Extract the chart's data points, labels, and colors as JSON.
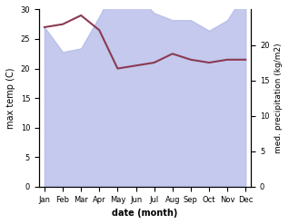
{
  "months": [
    "Jan",
    "Feb",
    "Mar",
    "Apr",
    "May",
    "Jun",
    "Jul",
    "Aug",
    "Sep",
    "Oct",
    "Nov",
    "Dec"
  ],
  "month_indices": [
    0,
    1,
    2,
    3,
    4,
    5,
    6,
    7,
    8,
    9,
    10,
    11
  ],
  "precip_mm": [
    22.5,
    19.0,
    19.5,
    24.0,
    29.0,
    27.0,
    24.5,
    23.5,
    23.5,
    22.0,
    23.5,
    27.5
  ],
  "temp_line": [
    27.0,
    27.5,
    29.0,
    26.5,
    20.0,
    20.5,
    21.0,
    22.5,
    21.5,
    21.0,
    21.5,
    21.5
  ],
  "fill_color": "#b0b8e8",
  "fill_alpha": 0.75,
  "line_color": "#8b3a52",
  "temp_ylim": [
    0,
    30
  ],
  "precip_ylim": [
    0,
    25
  ],
  "temp_yticks": [
    0,
    5,
    10,
    15,
    20,
    25,
    30
  ],
  "precip_yticks": [
    0,
    5,
    10,
    15,
    20
  ],
  "xlabel": "date (month)",
  "ylabel_left": "max temp (C)",
  "ylabel_right": "med. precipitation (kg/m2)",
  "background_color": "#ffffff",
  "line_width": 1.5
}
